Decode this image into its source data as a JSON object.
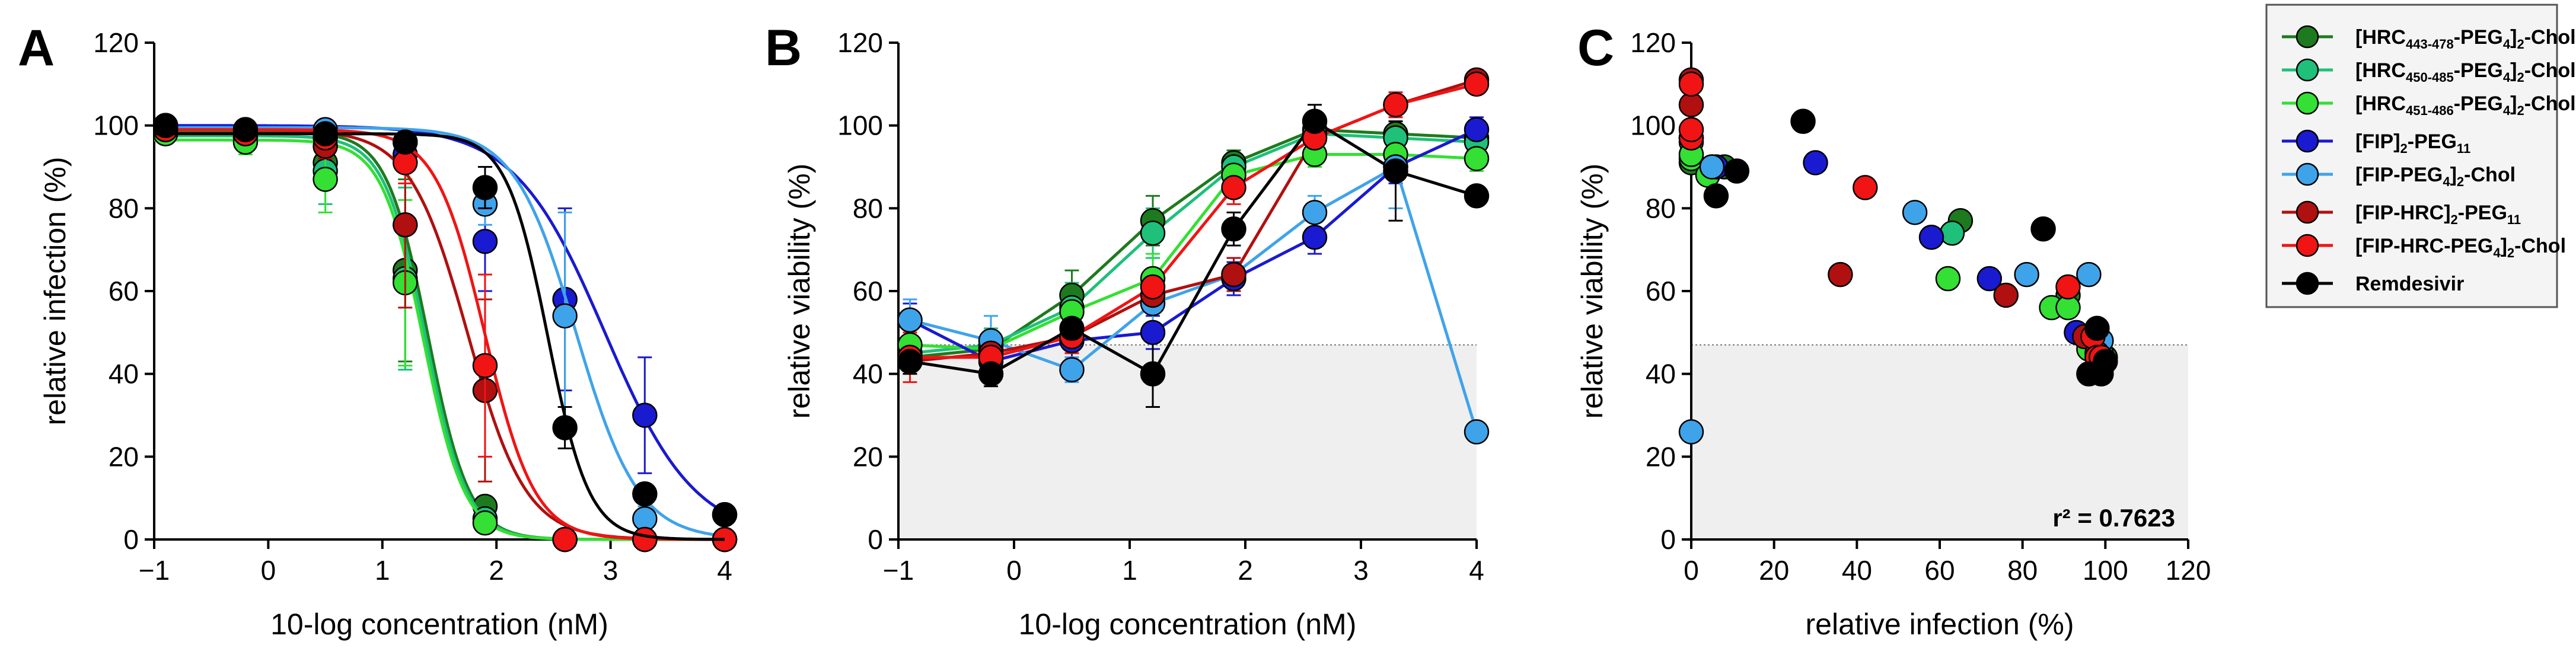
{
  "colors": {
    "HRC443": "#1e7a1e",
    "HRC450": "#1ec07a",
    "HRC451": "#33e033",
    "FIP_PEG11": "#1a1ad0",
    "FIP_PEG4": "#3fa3ea",
    "FIPHRC_PEG11": "#b01010",
    "FIPHRC_PEG4": "#f01414",
    "Remdesivir": "#000000"
  },
  "legend": {
    "entries": [
      {
        "key": "HRC443",
        "pre": "[HRC",
        "sub": "443-478",
        "mid": "-PEG",
        "sub2": "4",
        "post": "]",
        "sub3": "2",
        "tail": "-Chol"
      },
      {
        "key": "HRC450",
        "pre": "[HRC",
        "sub": "450-485",
        "mid": "-PEG",
        "sub2": "4",
        "post": "]",
        "sub3": "2",
        "tail": "-Chol"
      },
      {
        "key": "HRC451",
        "pre": "[HRC",
        "sub": "451-486",
        "mid": "-PEG",
        "sub2": "4",
        "post": "]",
        "sub3": "2",
        "tail": "-Chol"
      },
      {
        "key": "FIP_PEG11",
        "pre": "[FIP]",
        "sub": "2",
        "mid": "-PEG",
        "sub2": "11",
        "post": "",
        "sub3": "",
        "tail": ""
      },
      {
        "key": "FIP_PEG4",
        "pre": "[FIP-PEG",
        "sub": "4",
        "mid": "]",
        "sub2": "2",
        "post": "-Chol",
        "sub3": "",
        "tail": ""
      },
      {
        "key": "FIPHRC_PEG11",
        "pre": "[FIP-HRC]",
        "sub": "2",
        "mid": "-PEG",
        "sub2": "11",
        "post": "",
        "sub3": "",
        "tail": ""
      },
      {
        "key": "FIPHRC_PEG4",
        "pre": "[FIP-HRC-PEG",
        "sub": "4",
        "mid": "]",
        "sub2": "2",
        "post": "-Chol",
        "sub3": "",
        "tail": ""
      },
      {
        "key": "Remdesivir",
        "pre": "Remdesivir",
        "sub": "",
        "mid": "",
        "sub2": "",
        "post": "",
        "sub3": "",
        "tail": ""
      }
    ]
  },
  "chart_data": [
    {
      "type": "line",
      "panel": "A",
      "xlabel": "10-log concentration (nM)",
      "ylabel": "relative infection (%)",
      "xlim": [
        -1,
        4
      ],
      "ylim": [
        0,
        120
      ],
      "xticks": [
        "−1",
        "0",
        "1",
        "2",
        "3",
        "4"
      ],
      "yticks": [
        "0",
        "20",
        "40",
        "60",
        "80",
        "100",
        "120"
      ],
      "x": [
        -0.9,
        -0.2,
        0.5,
        1.2,
        1.9,
        2.6,
        3.3,
        4.0
      ],
      "series": [
        {
          "key": "HRC443",
          "values": [
            100,
            98,
            91,
            65,
            8,
            0,
            0,
            0
          ],
          "err": [
            2,
            3,
            6,
            22,
            2,
            0,
            0,
            0
          ],
          "ic50": 1.4,
          "hill": 2.4,
          "top": 98.5
        },
        {
          "key": "HRC450",
          "values": [
            99,
            97,
            89,
            63,
            5,
            0,
            0,
            0
          ],
          "err": [
            2,
            3,
            8,
            22,
            2,
            0,
            0,
            0
          ],
          "ic50": 1.38,
          "hill": 2.4,
          "top": 97.5
        },
        {
          "key": "HRC451",
          "values": [
            98,
            96,
            87,
            62,
            4,
            0,
            0,
            0
          ],
          "err": [
            2,
            3,
            8,
            20,
            2,
            0,
            0,
            0
          ],
          "ic50": 1.36,
          "hill": 2.4,
          "top": 96.5
        },
        {
          "key": "FIP_PEG11",
          "values": [
            99,
            99,
            98,
            93,
            72,
            58,
            30,
            6
          ],
          "err": [
            2,
            2,
            2,
            3,
            12,
            22,
            14,
            2
          ],
          "ic50": 2.95,
          "hill": 1.1,
          "top": 100
        },
        {
          "key": "FIP_PEG4",
          "values": [
            99,
            99,
            99,
            96,
            81,
            54,
            5,
            0
          ],
          "err": [
            2,
            2,
            2,
            2,
            5,
            25,
            3,
            0
          ],
          "ic50": 2.7,
          "hill": 1.6,
          "top": 99.5
        },
        {
          "key": "FIPHRC_PEG11",
          "values": [
            99,
            98,
            95,
            76,
            36,
            0,
            0,
            0
          ],
          "err": [
            2,
            2,
            3,
            20,
            22,
            0,
            0,
            0
          ],
          "ic50": 1.75,
          "hill": 1.7,
          "top": 99
        },
        {
          "key": "FIPHRC_PEG4",
          "values": [
            99,
            98,
            97,
            91,
            42,
            0,
            0,
            0
          ],
          "err": [
            2,
            2,
            2,
            5,
            22,
            0,
            0,
            0
          ],
          "ic50": 1.9,
          "hill": 2.0,
          "top": 99
        },
        {
          "key": "Remdesivir",
          "values": [
            100,
            99,
            98,
            96,
            85,
            27,
            11,
            6
          ],
          "err": [
            2,
            2,
            2,
            2,
            5,
            5,
            2,
            1
          ],
          "ic50": 2.45,
          "hill": 2.4,
          "top": 98
        }
      ]
    },
    {
      "type": "line",
      "panel": "B",
      "xlabel": "10-log concentration (nM)",
      "ylabel": "relative viability (%)",
      "xlim": [
        -1,
        4
      ],
      "ylim": [
        0,
        120
      ],
      "xticks": [
        "−1",
        "0",
        "1",
        "2",
        "3",
        "4"
      ],
      "yticks": [
        "0",
        "20",
        "40",
        "60",
        "80",
        "100",
        "120"
      ],
      "threshold": 47,
      "x": [
        -0.9,
        -0.2,
        0.5,
        1.2,
        1.9,
        2.6,
        3.3,
        4.0
      ],
      "series": [
        {
          "key": "HRC443",
          "values": [
            44,
            46,
            59,
            77,
            91,
            99,
            98,
            97
          ],
          "err": [
            3,
            4,
            6,
            6,
            3,
            3,
            3,
            3
          ]
        },
        {
          "key": "HRC450",
          "values": [
            45,
            47,
            56,
            74,
            90,
            98,
            97,
            96
          ],
          "err": [
            3,
            4,
            6,
            6,
            3,
            3,
            3,
            3
          ]
        },
        {
          "key": "HRC451",
          "values": [
            47,
            46,
            55,
            63,
            88,
            93,
            93,
            92
          ],
          "err": [
            3,
            4,
            6,
            6,
            3,
            3,
            3,
            3
          ]
        },
        {
          "key": "FIP_PEG11",
          "values": [
            53,
            43,
            48,
            50,
            63,
            73,
            90,
            99
          ],
          "err": [
            4,
            4,
            4,
            4,
            4,
            4,
            4,
            3
          ]
        },
        {
          "key": "FIP_PEG4",
          "values": [
            53,
            48,
            41,
            57,
            64,
            79,
            90,
            26
          ],
          "err": [
            5,
            6,
            3,
            6,
            4,
            4,
            10,
            2
          ]
        },
        {
          "key": "FIPHRC_PEG11",
          "values": [
            43,
            45,
            49,
            59,
            64,
            97,
            105,
            111
          ],
          "err": [
            3,
            4,
            4,
            4,
            4,
            4,
            3,
            2
          ]
        },
        {
          "key": "FIPHRC_PEG4",
          "values": [
            44,
            44,
            49,
            61,
            85,
            97,
            105,
            110
          ],
          "err": [
            6,
            4,
            4,
            4,
            4,
            4,
            3,
            2
          ]
        },
        {
          "key": "Remdesivir",
          "values": [
            43,
            40,
            51,
            40,
            75,
            101,
            89,
            83
          ],
          "err": [
            3,
            3,
            4,
            8,
            4,
            4,
            12,
            2
          ]
        }
      ]
    },
    {
      "type": "scatter",
      "panel": "C",
      "xlabel": "relative infection (%)",
      "ylabel": "relative viability (%)",
      "xlim": [
        0,
        120
      ],
      "ylim": [
        0,
        120
      ],
      "xticks": [
        "0",
        "20",
        "40",
        "60",
        "80",
        "100",
        "120"
      ],
      "yticks": [
        "0",
        "20",
        "40",
        "60",
        "80",
        "100",
        "120"
      ],
      "threshold": 47,
      "annotation": "r² = 0.7623",
      "points": [
        {
          "key": "HRC443",
          "x": 0,
          "y": 97
        },
        {
          "key": "HRC443",
          "x": 0,
          "y": 91
        },
        {
          "key": "HRC443",
          "x": 8,
          "y": 90
        },
        {
          "key": "HRC443",
          "x": 65,
          "y": 77
        },
        {
          "key": "HRC443",
          "x": 91,
          "y": 59
        },
        {
          "key": "HRC443",
          "x": 98,
          "y": 46
        },
        {
          "key": "HRC443",
          "x": 100,
          "y": 44
        },
        {
          "key": "HRC450",
          "x": 0,
          "y": 96
        },
        {
          "key": "HRC450",
          "x": 5,
          "y": 90
        },
        {
          "key": "HRC450",
          "x": 63,
          "y": 74
        },
        {
          "key": "HRC450",
          "x": 97,
          "y": 47
        },
        {
          "key": "HRC450",
          "x": 99,
          "y": 45
        },
        {
          "key": "HRC451",
          "x": 0,
          "y": 92
        },
        {
          "key": "HRC451",
          "x": 0,
          "y": 93
        },
        {
          "key": "HRC451",
          "x": 4,
          "y": 88
        },
        {
          "key": "HRC451",
          "x": 62,
          "y": 63
        },
        {
          "key": "HRC451",
          "x": 87,
          "y": 56
        },
        {
          "key": "HRC451",
          "x": 91,
          "y": 56
        },
        {
          "key": "HRC451",
          "x": 96,
          "y": 46
        },
        {
          "key": "HRC451",
          "x": 98,
          "y": 47
        },
        {
          "key": "FIP_PEG11",
          "x": 6,
          "y": 90
        },
        {
          "key": "FIP_PEG11",
          "x": 30,
          "y": 91
        },
        {
          "key": "FIP_PEG11",
          "x": 58,
          "y": 73
        },
        {
          "key": "FIP_PEG11",
          "x": 72,
          "y": 63
        },
        {
          "key": "FIP_PEG11",
          "x": 93,
          "y": 50
        },
        {
          "key": "FIP_PEG11",
          "x": 98,
          "y": 48
        },
        {
          "key": "FIP_PEG11",
          "x": 99,
          "y": 43
        },
        {
          "key": "FIP_PEG4",
          "x": 0,
          "y": 26
        },
        {
          "key": "FIP_PEG4",
          "x": 5,
          "y": 90
        },
        {
          "key": "FIP_PEG4",
          "x": 54,
          "y": 79
        },
        {
          "key": "FIP_PEG4",
          "x": 81,
          "y": 64
        },
        {
          "key": "FIP_PEG4",
          "x": 96,
          "y": 64
        },
        {
          "key": "FIP_PEG4",
          "x": 99,
          "y": 41
        },
        {
          "key": "FIP_PEG4",
          "x": 99,
          "y": 48
        },
        {
          "key": "FIPHRC_PEG11",
          "x": 0,
          "y": 111
        },
        {
          "key": "FIPHRC_PEG11",
          "x": 0,
          "y": 105
        },
        {
          "key": "FIPHRC_PEG11",
          "x": 0,
          "y": 97
        },
        {
          "key": "FIPHRC_PEG11",
          "x": 36,
          "y": 64
        },
        {
          "key": "FIPHRC_PEG11",
          "x": 76,
          "y": 59
        },
        {
          "key": "FIPHRC_PEG11",
          "x": 95,
          "y": 49
        },
        {
          "key": "FIPHRC_PEG11",
          "x": 98,
          "y": 45
        },
        {
          "key": "FIPHRC_PEG11",
          "x": 99,
          "y": 43
        },
        {
          "key": "FIPHRC_PEG4",
          "x": 0,
          "y": 110
        },
        {
          "key": "FIPHRC_PEG4",
          "x": 0,
          "y": 97
        },
        {
          "key": "FIPHRC_PEG4",
          "x": 0,
          "y": 99
        },
        {
          "key": "FIPHRC_PEG4",
          "x": 42,
          "y": 85
        },
        {
          "key": "FIPHRC_PEG4",
          "x": 91,
          "y": 61
        },
        {
          "key": "FIPHRC_PEG4",
          "x": 97,
          "y": 49
        },
        {
          "key": "FIPHRC_PEG4",
          "x": 98,
          "y": 44
        },
        {
          "key": "FIPHRC_PEG4",
          "x": 99,
          "y": 44
        },
        {
          "key": "Remdesivir",
          "x": 6,
          "y": 83
        },
        {
          "key": "Remdesivir",
          "x": 11,
          "y": 89
        },
        {
          "key": "Remdesivir",
          "x": 27,
          "y": 101
        },
        {
          "key": "Remdesivir",
          "x": 85,
          "y": 75
        },
        {
          "key": "Remdesivir",
          "x": 96,
          "y": 40
        },
        {
          "key": "Remdesivir",
          "x": 98,
          "y": 51
        },
        {
          "key": "Remdesivir",
          "x": 99,
          "y": 40
        },
        {
          "key": "Remdesivir",
          "x": 100,
          "y": 43
        }
      ]
    }
  ]
}
